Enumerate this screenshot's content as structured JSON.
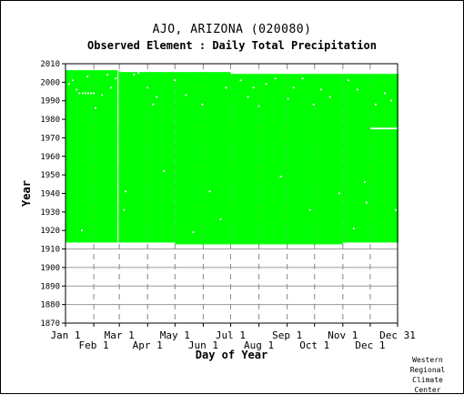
{
  "chart_data": {
    "type": "heatmap",
    "title": "AJO, ARIZONA   (020080)",
    "subtitle": "Observed Element : Daily Total Precipitation",
    "xlabel": "Day of Year",
    "ylabel": "Year",
    "x_range": [
      1,
      365
    ],
    "ylim": [
      1870,
      2010
    ],
    "y_ticks": [
      1870,
      1880,
      1890,
      1900,
      1910,
      1920,
      1930,
      1940,
      1950,
      1960,
      1970,
      1980,
      1990,
      2000,
      2010
    ],
    "x_ticks": [
      {
        "label": "Jan 1",
        "day": 1,
        "row": "top"
      },
      {
        "label": "Feb 1",
        "day": 32,
        "row": "bottom"
      },
      {
        "label": "Mar 1",
        "day": 60,
        "row": "top"
      },
      {
        "label": "Apr 1",
        "day": 91,
        "row": "bottom"
      },
      {
        "label": "May 1",
        "day": 121,
        "row": "top"
      },
      {
        "label": "Jun 1",
        "day": 152,
        "row": "bottom"
      },
      {
        "label": "Jul 1",
        "day": 182,
        "row": "top"
      },
      {
        "label": "Aug 1",
        "day": 213,
        "row": "bottom"
      },
      {
        "label": "Sep 1",
        "day": 244,
        "row": "top"
      },
      {
        "label": "Oct 1",
        "day": 274,
        "row": "bottom"
      },
      {
        "label": "Nov 1",
        "day": 305,
        "row": "top"
      },
      {
        "label": "Dec 1",
        "day": 335,
        "row": "bottom"
      },
      {
        "label": "Dec 31",
        "day": 365,
        "row": "top"
      }
    ],
    "grid": true,
    "data_color": "#00ff00",
    "coverage_blocks": [
      {
        "day_start": 1,
        "day_end": 60,
        "year_start": 1914,
        "year_end": 2006
      },
      {
        "day_start": 60,
        "day_end": 121,
        "year_start": 1914,
        "year_end": 2005
      },
      {
        "day_start": 121,
        "day_end": 182,
        "year_start": 1913,
        "year_end": 2005
      },
      {
        "day_start": 182,
        "day_end": 305,
        "year_start": 1913,
        "year_end": 2004
      },
      {
        "day_start": 305,
        "day_end": 366,
        "year_start": 1914,
        "year_end": 2004
      }
    ],
    "missing_days": [
      {
        "day": 4,
        "year": 1999
      },
      {
        "day": 8,
        "year": 2001
      },
      {
        "day": 12,
        "year": 1996
      },
      {
        "day": 15,
        "year": 1994
      },
      {
        "day": 19,
        "year": 1994
      },
      {
        "day": 22,
        "year": 1994
      },
      {
        "day": 25,
        "year": 1994
      },
      {
        "day": 28,
        "year": 1994
      },
      {
        "day": 31,
        "year": 1994
      },
      {
        "day": 18,
        "year": 1920
      },
      {
        "day": 24,
        "year": 2003
      },
      {
        "day": 33,
        "year": 1986
      },
      {
        "day": 40,
        "year": 1993
      },
      {
        "day": 46,
        "year": 2004
      },
      {
        "day": 50,
        "year": 1997
      },
      {
        "day": 55,
        "year": 2002
      },
      {
        "day": 64,
        "year": 1931
      },
      {
        "day": 66,
        "year": 1941
      },
      {
        "day": 75,
        "year": 2004
      },
      {
        "day": 80,
        "year": 2005
      },
      {
        "day": 90,
        "year": 1997
      },
      {
        "day": 96,
        "year": 1988
      },
      {
        "day": 100,
        "year": 1992
      },
      {
        "day": 108,
        "year": 1952
      },
      {
        "day": 120,
        "year": 2001
      },
      {
        "day": 132,
        "year": 1993
      },
      {
        "day": 140,
        "year": 1919
      },
      {
        "day": 150,
        "year": 1988
      },
      {
        "day": 158,
        "year": 1941
      },
      {
        "day": 170,
        "year": 1926
      },
      {
        "day": 176,
        "year": 1997
      },
      {
        "day": 192,
        "year": 2001
      },
      {
        "day": 200,
        "year": 1992
      },
      {
        "day": 206,
        "year": 1997
      },
      {
        "day": 212,
        "year": 1987
      },
      {
        "day": 220,
        "year": 1999
      },
      {
        "day": 230,
        "year": 2002
      },
      {
        "day": 236,
        "year": 1949
      },
      {
        "day": 244,
        "year": 1991
      },
      {
        "day": 250,
        "year": 1997
      },
      {
        "day": 260,
        "year": 2002
      },
      {
        "day": 268,
        "year": 1931
      },
      {
        "day": 272,
        "year": 1988
      },
      {
        "day": 280,
        "year": 1996
      },
      {
        "day": 290,
        "year": 1992
      },
      {
        "day": 300,
        "year": 1940
      },
      {
        "day": 310,
        "year": 2001
      },
      {
        "day": 316,
        "year": 1921
      },
      {
        "day": 320,
        "year": 1996
      },
      {
        "day": 328,
        "year": 1946
      },
      {
        "day": 330,
        "year": 1935
      },
      {
        "day": 340,
        "year": 1988
      },
      {
        "day": 350,
        "year": 1994
      },
      {
        "day": 357,
        "year": 1990
      },
      {
        "day": 362,
        "year": 1931
      }
    ],
    "missing_runs": [
      {
        "day_start": 335,
        "day_end": 365,
        "year": 1975
      }
    ],
    "missing_columns": [
      {
        "day": 58,
        "year_start": 1914,
        "year_end": 2006
      }
    ]
  },
  "credit": "Western Regional Climate Center"
}
